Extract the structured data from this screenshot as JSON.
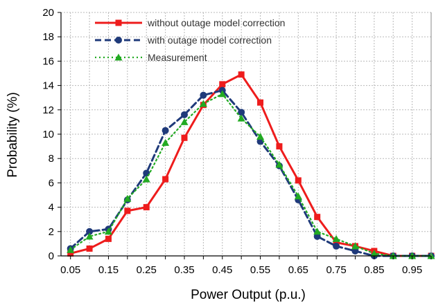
{
  "chart_data": {
    "type": "line",
    "xlabel": "Power Output (p.u.)",
    "ylabel": "Probability (%)",
    "x": [
      0.05,
      0.1,
      0.15,
      0.2,
      0.25,
      0.3,
      0.35,
      0.4,
      0.45,
      0.5,
      0.55,
      0.6,
      0.65,
      0.7,
      0.75,
      0.8,
      0.85,
      0.9,
      0.95,
      1.0
    ],
    "x_ticks": [
      "0.05",
      "0.15",
      "0.25",
      "0.35",
      "0.45",
      "0.55",
      "0.65",
      "0.75",
      "0.85",
      "0.95"
    ],
    "ylim": [
      0,
      20
    ],
    "y_ticks": [
      0,
      2,
      4,
      6,
      8,
      10,
      12,
      14,
      16,
      18,
      20
    ],
    "grid": true,
    "legend_position": "top-left",
    "series": [
      {
        "name": "without outage model correction",
        "color": "#ee1c1c",
        "line_style": "solid",
        "marker": "square",
        "values": [
          0.2,
          0.6,
          1.4,
          3.7,
          4.0,
          6.3,
          9.7,
          12.4,
          14.1,
          14.9,
          12.6,
          9.0,
          6.2,
          3.2,
          1.1,
          0.8,
          0.4,
          0.0,
          0.0,
          0.0
        ]
      },
      {
        "name": "with outage model correction",
        "color": "#1f3a7a",
        "line_style": "dashed",
        "marker": "circle",
        "values": [
          0.6,
          2.0,
          2.2,
          4.6,
          6.8,
          10.3,
          11.6,
          13.2,
          13.6,
          11.8,
          9.4,
          7.4,
          4.6,
          1.6,
          0.8,
          0.4,
          0.0,
          0.0,
          0.0,
          0.0
        ]
      },
      {
        "name": "Measurement",
        "color": "#22aa22",
        "line_style": "dotted",
        "marker": "triangle",
        "values": [
          0.5,
          1.6,
          2.0,
          4.7,
          6.3,
          9.3,
          11.0,
          12.5,
          13.3,
          11.3,
          9.8,
          7.5,
          4.9,
          2.0,
          1.4,
          0.8,
          0.2,
          0.0,
          0.0,
          0.0
        ]
      }
    ]
  }
}
